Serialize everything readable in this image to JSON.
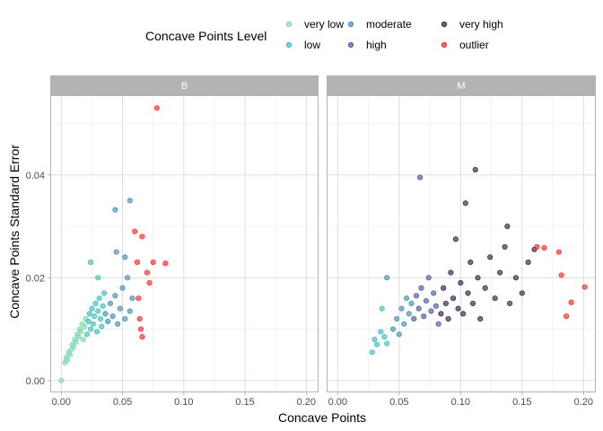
{
  "chart_data": {
    "type": "scatter",
    "xlabel": "Concave Points",
    "ylabel": "Concave Points Standard Error",
    "xlim": [
      -0.009,
      0.21
    ],
    "ylim": [
      -0.0023,
      0.0555
    ],
    "x_ticks": [
      {
        "value": 0.0,
        "label": "0.00"
      },
      {
        "value": 0.05,
        "label": "0.05"
      },
      {
        "value": 0.1,
        "label": "0.10"
      },
      {
        "value": 0.15,
        "label": "0.15"
      },
      {
        "value": 0.2,
        "label": "0.20"
      }
    ],
    "y_ticks": [
      {
        "value": 0.0,
        "label": "0.00"
      },
      {
        "value": 0.02,
        "label": "0.02"
      },
      {
        "value": 0.04,
        "label": "0.04"
      }
    ],
    "grid": true,
    "legend": {
      "title": "Concave Points Level",
      "position": "top",
      "levels": [
        {
          "label": "very low",
          "color": "#7fd8b0"
        },
        {
          "label": "low",
          "color": "#3ebfb8"
        },
        {
          "label": "moderate",
          "color": "#4391b0"
        },
        {
          "label": "high",
          "color": "#4c5a9c"
        },
        {
          "label": "very high",
          "color": "#2f2545"
        },
        {
          "label": "outlier",
          "color": "#ff2a2a"
        }
      ]
    },
    "facets": [
      {
        "label": "B",
        "points": [
          {
            "x": 0.0,
            "y": 0.0,
            "level": "very low"
          },
          {
            "x": 0.003,
            "y": 0.0035,
            "level": "very low"
          },
          {
            "x": 0.004,
            "y": 0.0045,
            "level": "very low"
          },
          {
            "x": 0.005,
            "y": 0.004,
            "level": "very low"
          },
          {
            "x": 0.006,
            "y": 0.0055,
            "level": "very low"
          },
          {
            "x": 0.007,
            "y": 0.005,
            "level": "very low"
          },
          {
            "x": 0.008,
            "y": 0.006,
            "level": "very low"
          },
          {
            "x": 0.009,
            "y": 0.007,
            "level": "very low"
          },
          {
            "x": 0.01,
            "y": 0.0065,
            "level": "very low"
          },
          {
            "x": 0.011,
            "y": 0.008,
            "level": "very low"
          },
          {
            "x": 0.012,
            "y": 0.0075,
            "level": "very low"
          },
          {
            "x": 0.013,
            "y": 0.009,
            "level": "very low"
          },
          {
            "x": 0.014,
            "y": 0.0085,
            "level": "very low"
          },
          {
            "x": 0.015,
            "y": 0.01,
            "level": "very low"
          },
          {
            "x": 0.016,
            "y": 0.0095,
            "level": "very low"
          },
          {
            "x": 0.017,
            "y": 0.011,
            "level": "very low"
          },
          {
            "x": 0.018,
            "y": 0.008,
            "level": "very low"
          },
          {
            "x": 0.019,
            "y": 0.0105,
            "level": "very low"
          },
          {
            "x": 0.02,
            "y": 0.012,
            "level": "very low"
          },
          {
            "x": 0.021,
            "y": 0.009,
            "level": "low"
          },
          {
            "x": 0.022,
            "y": 0.0115,
            "level": "low"
          },
          {
            "x": 0.023,
            "y": 0.013,
            "level": "low"
          },
          {
            "x": 0.024,
            "y": 0.01,
            "level": "low"
          },
          {
            "x": 0.025,
            "y": 0.014,
            "level": "low"
          },
          {
            "x": 0.026,
            "y": 0.011,
            "level": "low"
          },
          {
            "x": 0.027,
            "y": 0.0125,
            "level": "low"
          },
          {
            "x": 0.028,
            "y": 0.015,
            "level": "low"
          },
          {
            "x": 0.029,
            "y": 0.0095,
            "level": "low"
          },
          {
            "x": 0.03,
            "y": 0.0135,
            "level": "low"
          },
          {
            "x": 0.031,
            "y": 0.016,
            "level": "low"
          },
          {
            "x": 0.032,
            "y": 0.012,
            "level": "low"
          },
          {
            "x": 0.033,
            "y": 0.0105,
            "level": "low"
          },
          {
            "x": 0.034,
            "y": 0.0145,
            "level": "low"
          },
          {
            "x": 0.035,
            "y": 0.017,
            "level": "low"
          },
          {
            "x": 0.024,
            "y": 0.023,
            "level": "low"
          },
          {
            "x": 0.03,
            "y": 0.02,
            "level": "low"
          },
          {
            "x": 0.036,
            "y": 0.013,
            "level": "moderate"
          },
          {
            "x": 0.038,
            "y": 0.0115,
            "level": "moderate"
          },
          {
            "x": 0.04,
            "y": 0.015,
            "level": "moderate"
          },
          {
            "x": 0.042,
            "y": 0.0125,
            "level": "moderate"
          },
          {
            "x": 0.044,
            "y": 0.0165,
            "level": "moderate"
          },
          {
            "x": 0.046,
            "y": 0.011,
            "level": "moderate"
          },
          {
            "x": 0.048,
            "y": 0.014,
            "level": "moderate"
          },
          {
            "x": 0.05,
            "y": 0.018,
            "level": "moderate"
          },
          {
            "x": 0.052,
            "y": 0.012,
            "level": "moderate"
          },
          {
            "x": 0.054,
            "y": 0.02,
            "level": "moderate"
          },
          {
            "x": 0.056,
            "y": 0.0135,
            "level": "moderate"
          },
          {
            "x": 0.058,
            "y": 0.016,
            "level": "moderate"
          },
          {
            "x": 0.045,
            "y": 0.025,
            "level": "moderate"
          },
          {
            "x": 0.052,
            "y": 0.024,
            "level": "moderate"
          },
          {
            "x": 0.056,
            "y": 0.035,
            "level": "moderate"
          },
          {
            "x": 0.044,
            "y": 0.0332,
            "level": "moderate"
          },
          {
            "x": 0.06,
            "y": 0.029,
            "level": "outlier"
          },
          {
            "x": 0.062,
            "y": 0.023,
            "level": "outlier"
          },
          {
            "x": 0.063,
            "y": 0.016,
            "level": "outlier"
          },
          {
            "x": 0.064,
            "y": 0.012,
            "level": "outlier"
          },
          {
            "x": 0.065,
            "y": 0.01,
            "level": "outlier"
          },
          {
            "x": 0.066,
            "y": 0.0085,
            "level": "outlier"
          },
          {
            "x": 0.066,
            "y": 0.028,
            "level": "outlier"
          },
          {
            "x": 0.07,
            "y": 0.021,
            "level": "outlier"
          },
          {
            "x": 0.072,
            "y": 0.019,
            "level": "outlier"
          },
          {
            "x": 0.075,
            "y": 0.023,
            "level": "outlier"
          },
          {
            "x": 0.078,
            "y": 0.053,
            "level": "outlier"
          },
          {
            "x": 0.085,
            "y": 0.0228,
            "level": "outlier"
          }
        ]
      },
      {
        "label": "M",
        "points": [
          {
            "x": 0.028,
            "y": 0.0055,
            "level": "low"
          },
          {
            "x": 0.03,
            "y": 0.008,
            "level": "low"
          },
          {
            "x": 0.032,
            "y": 0.007,
            "level": "low"
          },
          {
            "x": 0.035,
            "y": 0.0095,
            "level": "low"
          },
          {
            "x": 0.038,
            "y": 0.0085,
            "level": "low"
          },
          {
            "x": 0.04,
            "y": 0.0072,
            "level": "low"
          },
          {
            "x": 0.036,
            "y": 0.014,
            "level": "low"
          },
          {
            "x": 0.045,
            "y": 0.01,
            "level": "moderate"
          },
          {
            "x": 0.048,
            "y": 0.012,
            "level": "moderate"
          },
          {
            "x": 0.05,
            "y": 0.009,
            "level": "moderate"
          },
          {
            "x": 0.052,
            "y": 0.014,
            "level": "moderate"
          },
          {
            "x": 0.054,
            "y": 0.011,
            "level": "moderate"
          },
          {
            "x": 0.056,
            "y": 0.016,
            "level": "moderate"
          },
          {
            "x": 0.058,
            "y": 0.013,
            "level": "moderate"
          },
          {
            "x": 0.06,
            "y": 0.015,
            "level": "moderate"
          },
          {
            "x": 0.04,
            "y": 0.02,
            "level": "moderate"
          },
          {
            "x": 0.062,
            "y": 0.012,
            "level": "high"
          },
          {
            "x": 0.064,
            "y": 0.0165,
            "level": "high"
          },
          {
            "x": 0.066,
            "y": 0.014,
            "level": "high"
          },
          {
            "x": 0.068,
            "y": 0.018,
            "level": "high"
          },
          {
            "x": 0.07,
            "y": 0.0125,
            "level": "high"
          },
          {
            "x": 0.072,
            "y": 0.0155,
            "level": "high"
          },
          {
            "x": 0.074,
            "y": 0.02,
            "level": "high"
          },
          {
            "x": 0.076,
            "y": 0.0135,
            "level": "high"
          },
          {
            "x": 0.078,
            "y": 0.017,
            "level": "high"
          },
          {
            "x": 0.08,
            "y": 0.0145,
            "level": "high"
          },
          {
            "x": 0.082,
            "y": 0.011,
            "level": "high"
          },
          {
            "x": 0.067,
            "y": 0.0395,
            "level": "high"
          },
          {
            "x": 0.084,
            "y": 0.013,
            "level": "very high"
          },
          {
            "x": 0.086,
            "y": 0.018,
            "level": "very high"
          },
          {
            "x": 0.088,
            "y": 0.015,
            "level": "very high"
          },
          {
            "x": 0.09,
            "y": 0.012,
            "level": "very high"
          },
          {
            "x": 0.092,
            "y": 0.021,
            "level": "very high"
          },
          {
            "x": 0.094,
            "y": 0.016,
            "level": "very high"
          },
          {
            "x": 0.096,
            "y": 0.0275,
            "level": "very high"
          },
          {
            "x": 0.098,
            "y": 0.014,
            "level": "very high"
          },
          {
            "x": 0.1,
            "y": 0.019,
            "level": "very high"
          },
          {
            "x": 0.102,
            "y": 0.013,
            "level": "very high"
          },
          {
            "x": 0.104,
            "y": 0.0345,
            "level": "very high"
          },
          {
            "x": 0.106,
            "y": 0.017,
            "level": "very high"
          },
          {
            "x": 0.108,
            "y": 0.023,
            "level": "very high"
          },
          {
            "x": 0.11,
            "y": 0.015,
            "level": "very high"
          },
          {
            "x": 0.112,
            "y": 0.041,
            "level": "very high"
          },
          {
            "x": 0.114,
            "y": 0.02,
            "level": "very high"
          },
          {
            "x": 0.116,
            "y": 0.012,
            "level": "very high"
          },
          {
            "x": 0.12,
            "y": 0.018,
            "level": "very high"
          },
          {
            "x": 0.124,
            "y": 0.024,
            "level": "very high"
          },
          {
            "x": 0.128,
            "y": 0.016,
            "level": "very high"
          },
          {
            "x": 0.132,
            "y": 0.021,
            "level": "very high"
          },
          {
            "x": 0.136,
            "y": 0.026,
            "level": "very high"
          },
          {
            "x": 0.138,
            "y": 0.03,
            "level": "very high"
          },
          {
            "x": 0.14,
            "y": 0.015,
            "level": "very high"
          },
          {
            "x": 0.145,
            "y": 0.02,
            "level": "very high"
          },
          {
            "x": 0.15,
            "y": 0.017,
            "level": "very high"
          },
          {
            "x": 0.155,
            "y": 0.023,
            "level": "very high"
          },
          {
            "x": 0.16,
            "y": 0.0255,
            "level": "very high"
          },
          {
            "x": 0.162,
            "y": 0.026,
            "level": "outlier"
          },
          {
            "x": 0.168,
            "y": 0.0258,
            "level": "outlier"
          },
          {
            "x": 0.18,
            "y": 0.025,
            "level": "outlier"
          },
          {
            "x": 0.182,
            "y": 0.0205,
            "level": "outlier"
          },
          {
            "x": 0.186,
            "y": 0.0125,
            "level": "outlier"
          },
          {
            "x": 0.19,
            "y": 0.0152,
            "level": "outlier"
          },
          {
            "x": 0.201,
            "y": 0.0182,
            "level": "outlier"
          }
        ]
      }
    ]
  }
}
